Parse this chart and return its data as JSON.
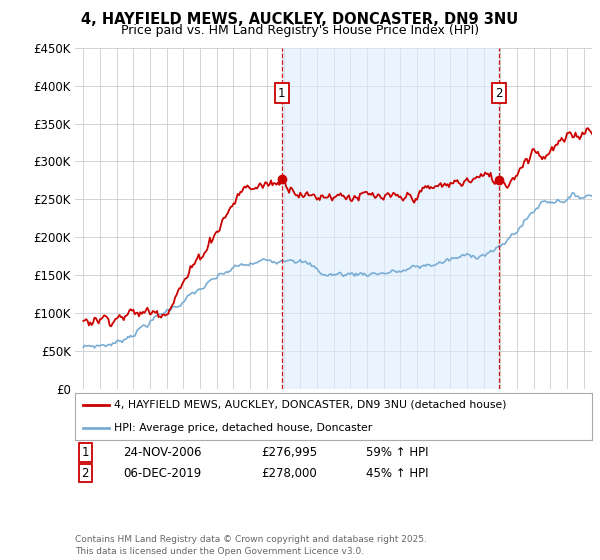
{
  "title1": "4, HAYFIELD MEWS, AUCKLEY, DONCASTER, DN9 3NU",
  "title2": "Price paid vs. HM Land Registry's House Price Index (HPI)",
  "background_color": "#ffffff",
  "grid_color": "#cccccc",
  "sale1_x": 2006.9,
  "sale1_price": 276995,
  "sale2_x": 2019.93,
  "sale2_price": 278000,
  "legend_line1": "4, HAYFIELD MEWS, AUCKLEY, DONCASTER, DN9 3NU (detached house)",
  "legend_line2": "HPI: Average price, detached house, Doncaster",
  "table_row1": [
    "1",
    "24-NOV-2006",
    "£276,995",
    "59% ↑ HPI"
  ],
  "table_row2": [
    "2",
    "06-DEC-2019",
    "£278,000",
    "45% ↑ HPI"
  ],
  "footer": "Contains HM Land Registry data © Crown copyright and database right 2025.\nThis data is licensed under the Open Government Licence v3.0.",
  "red_color": "#cc0000",
  "blue_color": "#7aadd4",
  "shade_color": "#ddeeff",
  "ylim": [
    0,
    450000
  ],
  "xlim_start": 1994.5,
  "xlim_end": 2025.5
}
